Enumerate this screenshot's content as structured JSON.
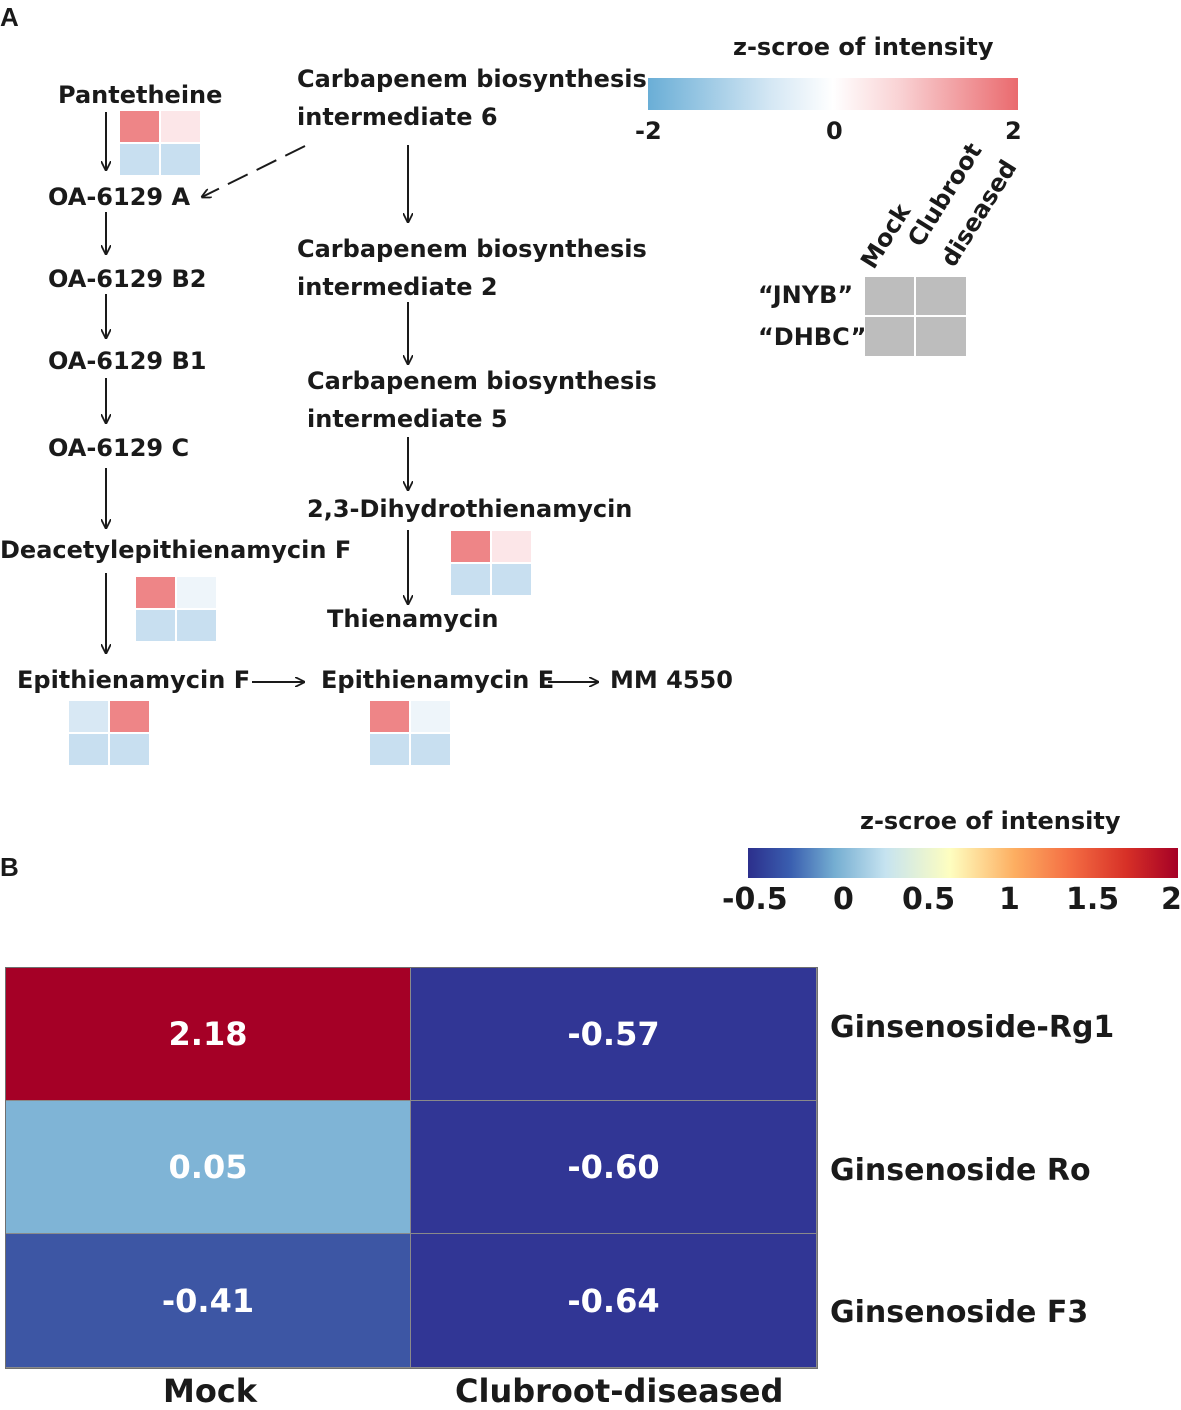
{
  "panel_a": {
    "label": "A",
    "legend": {
      "title": "z-scroe of intensity",
      "ticks": [
        "-2",
        "0",
        "2"
      ],
      "colors": {
        "low": "#6aaed6",
        "mid": "#ffffff",
        "high": "#ea6a6e"
      }
    },
    "key": {
      "col_labels": [
        "Mock",
        "Clubroot",
        "diseased"
      ],
      "row_labels": [
        "“JNYB”",
        "“DHBC”"
      ],
      "cell_color": "#bdbdbd"
    },
    "nodes": {
      "pantetheine": "Pantetheine",
      "oa_a": "OA-6129 A",
      "oa_b2": "OA-6129 B2",
      "oa_b1": "OA-6129 B1",
      "oa_c": "OA-6129 C",
      "deacetyl": "Deacetylepithienamycin F",
      "epi_f": "Epithienamycin F",
      "carb6_l1": "Carbapenem biosynthesis",
      "carb6_l2": "intermediate 6",
      "carb2_l1": "Carbapenem biosynthesis",
      "carb2_l2": "intermediate 2",
      "carb5_l1": "Carbapenem biosynthesis",
      "carb5_l2": "intermediate 5",
      "dihydro": "2,3-Dihydrothienamycin",
      "thien": "Thienamycin",
      "epi_e": "Epithienamycin E",
      "mm": "MM 4550"
    },
    "mini_heatmaps": {
      "pantetheine": [
        "#ee8587",
        "#fce6e8",
        "#c8dff0",
        "#c8dff0"
      ],
      "dihydro": [
        "#ee8587",
        "#fce6e8",
        "#c8dff0",
        "#c8dff0"
      ],
      "deacetyl": [
        "#ee8587",
        "#eef5fa",
        "#c8dff0",
        "#c8dff0"
      ],
      "epi_f": [
        "#d8e8f4",
        "#ee8587",
        "#c8dff0",
        "#c8dff0"
      ],
      "epi_e": [
        "#ee8587",
        "#eef5fa",
        "#c8dff0",
        "#c8dff0"
      ]
    }
  },
  "panel_b": {
    "label": "B",
    "legend": {
      "title": "z-scroe of intensity",
      "ticks": [
        "-0.5",
        "0",
        "0.5",
        "1",
        "1.5",
        "2"
      ]
    },
    "heatmap": {
      "columns": [
        "Mock",
        "Clubroot-diseased"
      ],
      "rows": [
        {
          "name": "Ginsenoside-Rg1",
          "values": [
            "2.18",
            "-0.57"
          ],
          "colors": [
            "#a50026",
            "#313695"
          ]
        },
        {
          "name": "Ginsenoside Ro",
          "values": [
            "0.05",
            "-0.60"
          ],
          "colors": [
            "#7fb4d6",
            "#313695"
          ]
        },
        {
          "name": "Ginsenoside F3",
          "values": [
            "-0.41",
            "-0.64"
          ],
          "colors": [
            "#3d56a4",
            "#313695"
          ]
        }
      ]
    }
  }
}
